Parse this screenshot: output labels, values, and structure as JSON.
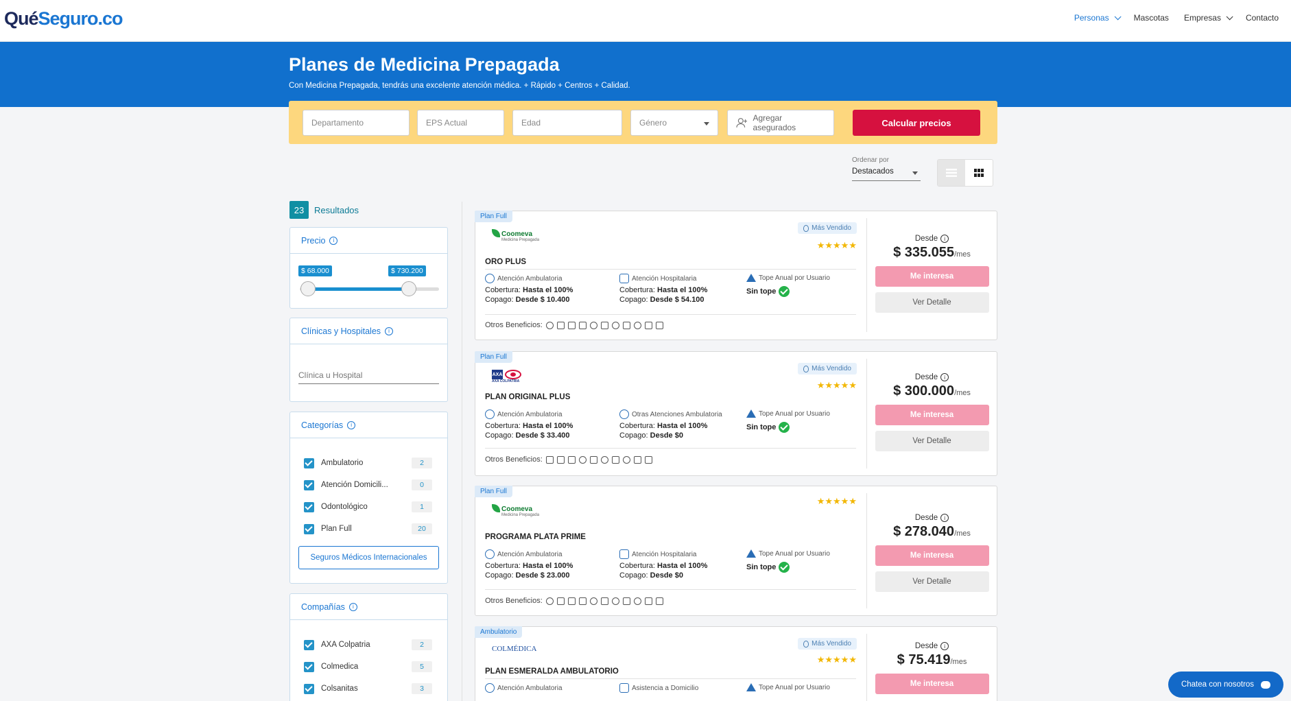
{
  "header": {
    "logo_que": "Qué",
    "logo_seguro": "Seguro",
    "logo_co": ".co",
    "nav": [
      {
        "label": "Personas",
        "active": true,
        "dropdown": true
      },
      {
        "label": "Mascotas",
        "active": false,
        "dropdown": false
      },
      {
        "label": "Empresas",
        "active": false,
        "dropdown": true
      },
      {
        "label": "Contacto",
        "active": false,
        "dropdown": false
      }
    ]
  },
  "hero": {
    "title": "Planes de Medicina Prepagada",
    "subtitle": "Con Medicina Prepagada, tendrás una excelente atención médica. + Rápido + Centros + Calidad."
  },
  "search": {
    "departamento_placeholder": "Departamento",
    "eps_placeholder": "EPS Actual",
    "edad_placeholder": "Edad",
    "genero_placeholder": "Género",
    "agregar_label": "Agregar asegurados",
    "calcular_label": "Calcular precios"
  },
  "sort": {
    "label": "Ordenar por",
    "value": "Destacados"
  },
  "results": {
    "count": "23",
    "label": "Resultados"
  },
  "filters": {
    "precio": {
      "title": "Precio",
      "min": "$ 68.000",
      "max": "$ 730.200"
    },
    "clinicas": {
      "title": "Clínicas y Hospitales",
      "placeholder": "Clínica u Hospital"
    },
    "categorias": {
      "title": "Categorías",
      "items": [
        {
          "label": "Ambulatorio",
          "count": "2"
        },
        {
          "label": "Atención Domicili...",
          "count": "0"
        },
        {
          "label": "Odontológico",
          "count": "1"
        },
        {
          "label": "Plan Full",
          "count": "20"
        }
      ],
      "button": "Seguros Médicos Internacionales"
    },
    "companias": {
      "title": "Compañías",
      "items": [
        {
          "label": "AXA Colpatria",
          "count": "2"
        },
        {
          "label": "Colmedica",
          "count": "5"
        },
        {
          "label": "Colsanitas",
          "count": "3"
        }
      ]
    }
  },
  "plans": [
    {
      "tag": "Plan Full",
      "brand": "Coomeva",
      "brand_sub": "Medicina Prepagada",
      "name": "ORO PLUS",
      "mas_vendido": "Más Vendido",
      "stars": "★★★★★",
      "f1_head": "Atención Ambulatoria",
      "f1_cob_label": "Cobertura:",
      "f1_cob": "Hasta el 100%",
      "f1_cop_label": "Copago:",
      "f1_cop": "Desde $ 10.400",
      "f2_head": "Atención Hospitalaria",
      "f2_cob_label": "Cobertura:",
      "f2_cob": "Hasta el 100%",
      "f2_cop_label": "Copago:",
      "f2_cop": "Desde $ 54.100",
      "f3_head": "Tope Anual por Usuario",
      "f3_value": "Sin tope",
      "otros": "Otros Beneficios:",
      "desde": "Desde",
      "price": "$ 335.055",
      "per": "/mes",
      "interes": "Me interesa",
      "detalle": "Ver Detalle"
    },
    {
      "tag": "Plan Full",
      "brand": "AXA COLPATRIA",
      "name": "PLAN ORIGINAL PLUS",
      "mas_vendido": "Más Vendido",
      "stars": "★★★★★",
      "f1_head": "Atención Ambulatoria",
      "f1_cob_label": "Cobertura:",
      "f1_cob": "Hasta el 100%",
      "f1_cop_label": "Copago:",
      "f1_cop": "Desde $ 33.400",
      "f2_head": "Otras Atenciones Ambulatoria",
      "f2_cob_label": "Cobertura:",
      "f2_cob": "Hasta el 100%",
      "f2_cop_label": "Copago:",
      "f2_cop": "Desde $0",
      "f3_head": "Tope Anual por Usuario",
      "f3_value": "Sin tope",
      "otros": "Otros Beneficios:",
      "desde": "Desde",
      "price": "$ 300.000",
      "per": "/mes",
      "interes": "Me interesa",
      "detalle": "Ver Detalle"
    },
    {
      "tag": "Plan Full",
      "brand": "Coomeva",
      "brand_sub": "Medicina Prepagada",
      "name": "PROGRAMA PLATA PRIME",
      "stars": "★★★★★",
      "f1_head": "Atención Ambulatoria",
      "f1_cob_label": "Cobertura:",
      "f1_cob": "Hasta el 100%",
      "f1_cop_label": "Copago:",
      "f1_cop": "Desde $ 23.000",
      "f2_head": "Atención Hospitalaria",
      "f2_cob_label": "Cobertura:",
      "f2_cob": "Hasta el 100%",
      "f2_cop_label": "Copago:",
      "f2_cop": "Desde $0",
      "f3_head": "Tope Anual por Usuario",
      "f3_value": "Sin tope",
      "otros": "Otros Beneficios:",
      "desde": "Desde",
      "price": "$ 278.040",
      "per": "/mes",
      "interes": "Me interesa",
      "detalle": "Ver Detalle"
    },
    {
      "tag": "Ambulatorio",
      "brand": "COLMÉDICA",
      "name": "PLAN ESMERALDA AMBULATORIO",
      "mas_vendido": "Más Vendido",
      "stars": "★★★★★",
      "f1_head": "Atención Ambulatoria",
      "f2_head": "Asistencia a Domicilio",
      "f3_head": "Tope Anual por Usuario",
      "desde": "Desde",
      "price": "$ 75.419",
      "per": "/mes",
      "interes": "Me interesa"
    }
  ],
  "chat": {
    "label": "Chatea con nosotros"
  }
}
